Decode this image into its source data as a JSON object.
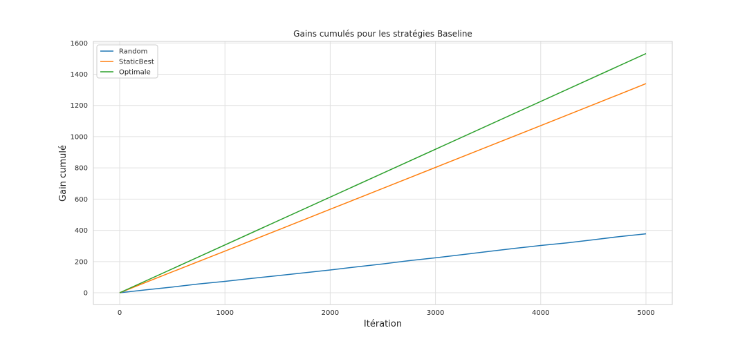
{
  "chart_data": {
    "type": "line",
    "title": "Gains cumulés pour les stratégies Baseline",
    "xlabel": "Itération",
    "ylabel": "Gain cumulé",
    "xlim": [
      -250,
      5250
    ],
    "ylim": [
      -75,
      1610
    ],
    "xticks": [
      0,
      1000,
      2000,
      3000,
      4000,
      5000
    ],
    "yticks": [
      0,
      200,
      400,
      600,
      800,
      1000,
      1200,
      1400,
      1600
    ],
    "grid": true,
    "legend_position": "top-left",
    "series": [
      {
        "name": "Random",
        "color": "#1f77b4",
        "x": [
          0,
          250,
          500,
          750,
          1000,
          1250,
          1500,
          1750,
          2000,
          2250,
          2500,
          2750,
          3000,
          3250,
          3500,
          3750,
          4000,
          4250,
          4500,
          4750,
          5000
        ],
        "y": [
          0,
          19,
          37,
          57,
          73,
          92,
          110,
          128,
          146,
          166,
          185,
          206,
          224,
          244,
          264,
          284,
          303,
          320,
          340,
          360,
          378
        ]
      },
      {
        "name": "StaticBest",
        "color": "#ff7f0e",
        "x": [
          0,
          500,
          1000,
          1500,
          2000,
          2500,
          3000,
          3500,
          4000,
          4500,
          5000
        ],
        "y": [
          0,
          134,
          267,
          401,
          535,
          669,
          803,
          937,
          1071,
          1205,
          1340
        ]
      },
      {
        "name": "Optimale",
        "color": "#2ca02c",
        "x": [
          0,
          5000
        ],
        "y": [
          0,
          1532
        ]
      }
    ]
  }
}
